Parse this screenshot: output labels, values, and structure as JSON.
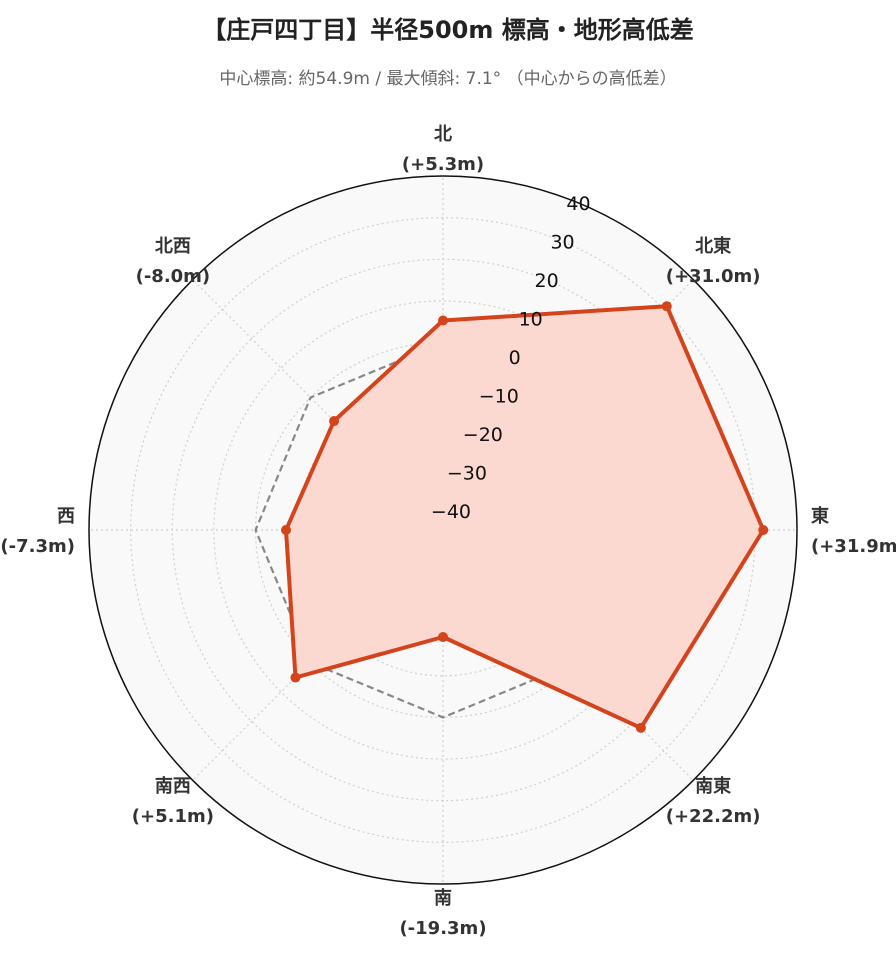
{
  "chart_data": {
    "type": "radar",
    "title": "【庄戸四丁目】半径500m 標高・地形高低差",
    "subtitle": "中心標高: 約54.9m / 最大傾斜: 7.1° （中心からの高低差）",
    "directions": [
      {
        "name": "北",
        "value_label": "(+5.3m)"
      },
      {
        "name": "北東",
        "value_label": "(+31.0m)"
      },
      {
        "name": "東",
        "value_label": "(+31.9m)"
      },
      {
        "name": "南東",
        "value_label": "(+22.2m)"
      },
      {
        "name": "南",
        "value_label": "(-19.3m)"
      },
      {
        "name": "南西",
        "value_label": "(+5.1m)"
      },
      {
        "name": "西",
        "value_label": "(-7.3m)"
      },
      {
        "name": "北西",
        "value_label": "(-8.0m)"
      }
    ],
    "series": [
      {
        "values": [
          5.3,
          31.0,
          31.9,
          22.2,
          -19.3,
          5.1,
          -7.3,
          -8.0
        ],
        "color": "#d4441c",
        "fill": "#fbd9d1"
      },
      {
        "values": [
          0,
          0,
          0,
          0,
          0,
          0,
          0,
          0
        ],
        "color": "#888888",
        "style": "dashed"
      }
    ],
    "radial_ticks": [
      -40,
      -30,
      -20,
      -10,
      0,
      10,
      20,
      30,
      40
    ],
    "rlim": [
      -45,
      40
    ],
    "grid": true
  }
}
